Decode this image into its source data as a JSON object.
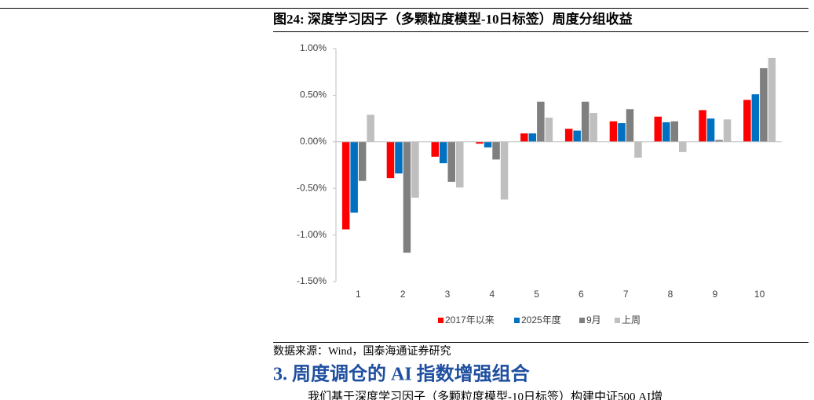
{
  "chart_data": {
    "type": "bar",
    "title": "图24:  深度学习因子（多颗粒度模型-10日标签）周度分组收益",
    "categories": [
      "1",
      "2",
      "3",
      "4",
      "5",
      "6",
      "7",
      "8",
      "9",
      "10"
    ],
    "series": [
      {
        "name": "2017年以来",
        "color": "#ff0000",
        "values": [
          -0.94,
          -0.39,
          -0.16,
          -0.02,
          0.09,
          0.14,
          0.22,
          0.27,
          0.34,
          0.45
        ]
      },
      {
        "name": "2025年度",
        "color": "#0070c0",
        "values": [
          -0.76,
          -0.34,
          -0.23,
          -0.06,
          0.09,
          0.12,
          0.2,
          0.21,
          0.25,
          0.51
        ]
      },
      {
        "name": "9月",
        "color": "#7f7f7f",
        "values": [
          -0.42,
          -1.19,
          -0.43,
          -0.19,
          0.43,
          0.43,
          0.35,
          0.22,
          0.02,
          0.79
        ]
      },
      {
        "name": "上周",
        "color": "#bfbfbf",
        "values": [
          0.29,
          -0.6,
          -0.49,
          -0.62,
          0.26,
          0.31,
          -0.17,
          -0.11,
          0.24,
          0.9
        ]
      }
    ],
    "ylim": [
      -1.5,
      1.0
    ],
    "yticks": [
      {
        "value": 1.0,
        "label": "1.00%"
      },
      {
        "value": 0.5,
        "label": "0.50%"
      },
      {
        "value": 0,
        "label": "0.00%"
      },
      {
        "value": -0.5,
        "label": "-0.50%"
      },
      {
        "value": -1.0,
        "label": "-1.00%"
      },
      {
        "value": -1.5,
        "label": "-1.50%"
      }
    ],
    "grid": false,
    "legend": "bottom"
  },
  "source": "数据来源：Wind，国泰海通证券研究",
  "section_heading": "3.  周度调仓的 AI 指数增强组合",
  "paragraph": "我们基于深度学习因子（多颗粒度模型-10日标签）构建中证500 AI增"
}
